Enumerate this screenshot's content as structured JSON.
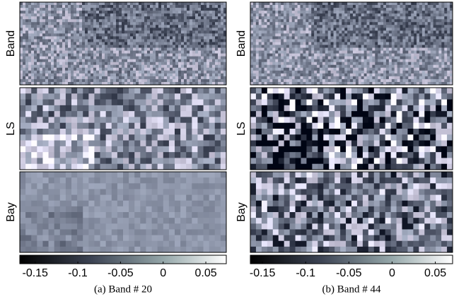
{
  "panels": [
    {
      "caption": "(a)  Band # 20",
      "row_labels": [
        "Band",
        "LS",
        "Bay"
      ],
      "colorbar": {
        "clim": [
          -0.168,
          0.074
        ],
        "ticks": [
          -0.15,
          -0.1,
          -0.05,
          0,
          0.05
        ]
      }
    },
    {
      "caption": "(b)  Band # 44",
      "row_labels": [
        "Band",
        "LS",
        "Bay"
      ],
      "colorbar": {
        "clim": [
          -0.164,
          0.07
        ],
        "ticks": [
          -0.15,
          -0.1,
          -0.05,
          0,
          0.05
        ]
      }
    }
  ]
}
